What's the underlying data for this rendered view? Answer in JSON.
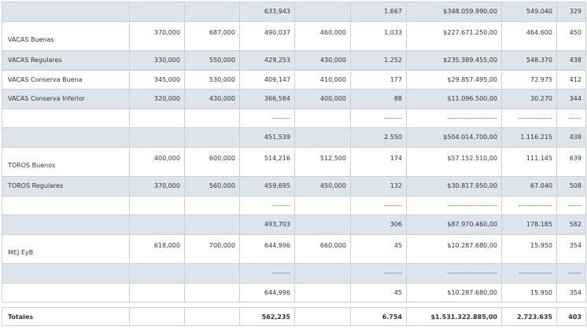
{
  "rows": [
    {
      "label": "",
      "c1": "",
      "c2": "",
      "c3": "633,943",
      "c4": "",
      "c5": "1.667",
      "c6": "$348.059.990,00",
      "c7": "549.040",
      "c8": "329"
    },
    {
      "label": "VACAS Buenas",
      "c1": "370,000",
      "c2": "687,000",
      "c3": "490,037",
      "c4": "460,000",
      "c5": "1,033",
      "c6": "$227.671.250,00",
      "c7": "464.600",
      "c8": "450"
    },
    {
      "label": "VACAS Regulares",
      "c1": "330,000",
      "c2": "550,000",
      "c3": "429,253",
      "c4": "430,000",
      "c5": "1.252",
      "c6": "$235.389.455,00",
      "c7": "548.370",
      "c8": "438"
    },
    {
      "label": "VACAS Conserva Buena",
      "c1": "345,000",
      "c2": "530,000",
      "c3": "409,147",
      "c4": "410,000",
      "c5": "177",
      "c6": "$29.857.495,00",
      "c7": "72.975",
      "c8": "412"
    },
    {
      "label": "VACAS Conserva Inferior",
      "c1": "320,000",
      "c2": "430,000",
      "c3": "366,584",
      "c4": "400,000",
      "c5": "88",
      "c6": "$11.096.500,00",
      "c7": "30.270",
      "c8": "344"
    },
    {
      "label": "",
      "c1": "",
      "c2": "",
      "c3": "--------",
      "c4": "",
      "c5": "--------",
      "c6": "----------------------",
      "c7": "---------------",
      "c8": "------"
    },
    {
      "label": "",
      "c1": "",
      "c2": "",
      "c3": "451,539",
      "c4": "",
      "c5": "2.550",
      "c6": "$504.014.700,00",
      "c7": "1.116.215",
      "c8": "438"
    },
    {
      "label": "TOROS Buenos",
      "c1": "400,000",
      "c2": "600,000",
      "c3": "514,216",
      "c4": "512,500",
      "c5": "174",
      "c6": "$57.152.510,00",
      "c7": "111.145",
      "c8": "639"
    },
    {
      "label": "TOROS Regulares",
      "c1": "370,000",
      "c2": "560,000",
      "c3": "459,695",
      "c4": "450,000",
      "c5": "132",
      "c6": "$30.817.950,00",
      "c7": "67.040",
      "c8": "508"
    },
    {
      "label": "",
      "c1": "",
      "c2": "",
      "c3": "--------",
      "c4": "",
      "c5": "--------",
      "c6": "----------------------",
      "c7": "---------------",
      "c8": "------"
    },
    {
      "label": "",
      "c1": "",
      "c2": "",
      "c3": "493,703",
      "c4": "",
      "c5": "306",
      "c6": "$87.970.460,00",
      "c7": "178.185",
      "c8": "582"
    },
    {
      "label": "MEJ EyB",
      "c1": "618,000",
      "c2": "700,000",
      "c3": "644,996",
      "c4": "660,000",
      "c5": "45",
      "c6": "$10.287.680,00",
      "c7": "15.950",
      "c8": "354"
    },
    {
      "label": "",
      "c1": "",
      "c2": "",
      "c3": "--------",
      "c4": "",
      "c5": "--------",
      "c6": "----------------------",
      "c7": "---------------",
      "c8": "------"
    },
    {
      "label": "",
      "c1": "",
      "c2": "",
      "c3": "644,996",
      "c4": "",
      "c5": "45",
      "c6": "$10.287.680,00",
      "c7": "15.950",
      "c8": "354"
    }
  ],
  "totals": {
    "label": "Totales",
    "c3": "562,235",
    "c5": "6.754",
    "c6": "$1.531.322.885,00",
    "c7": "2.723.635",
    "c8": "403"
  }
}
